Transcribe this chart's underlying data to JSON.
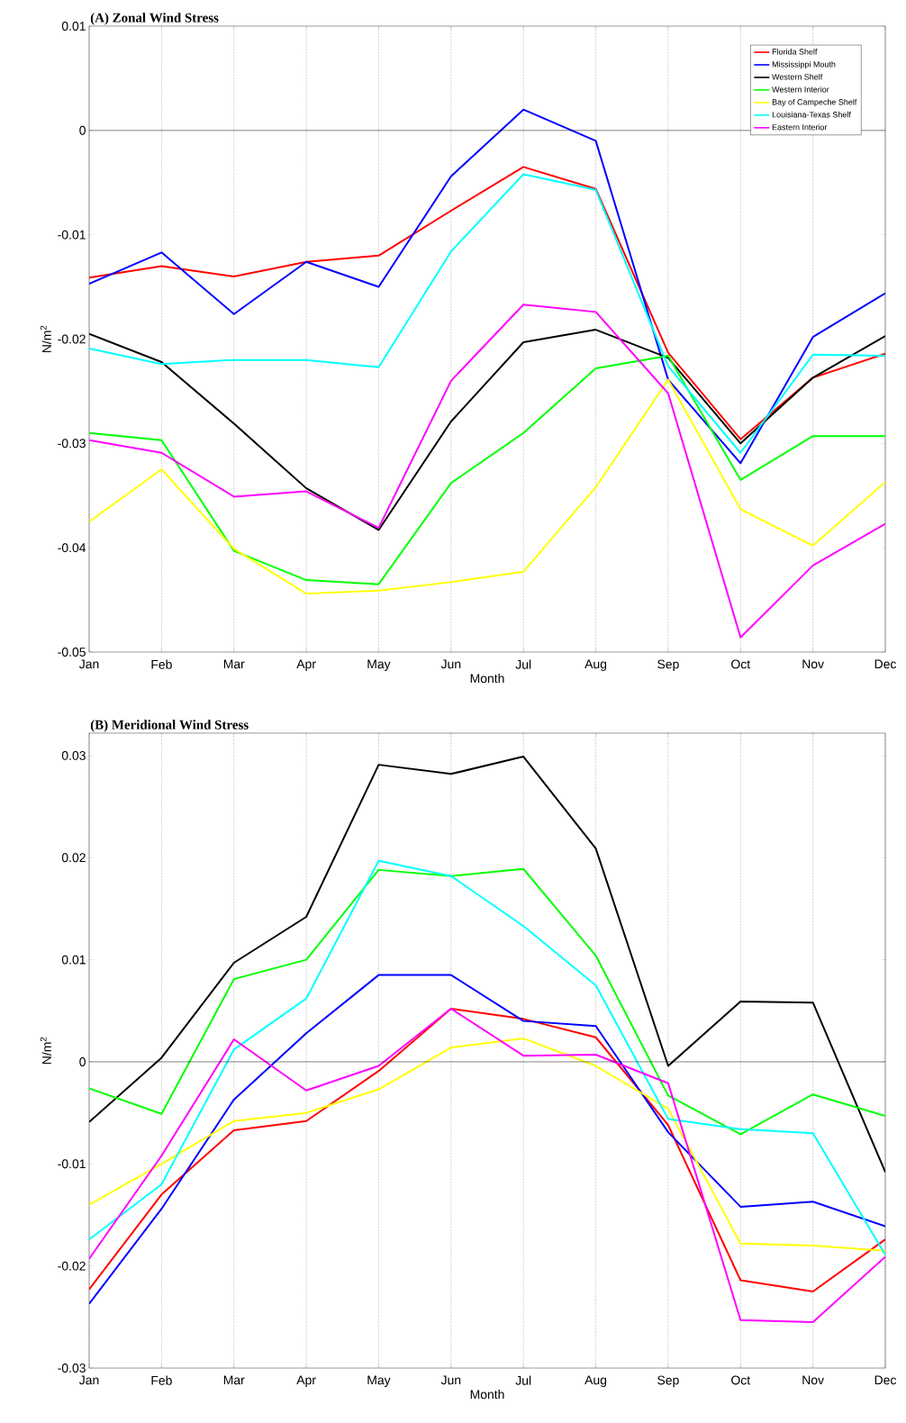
{
  "chart_data": [
    {
      "type": "line",
      "title": "(A) Zonal Wind Stress",
      "xlabel": "Month",
      "ylabel": "N/m$^{2}$",
      "categories": [
        "Jan",
        "Feb",
        "Mar",
        "Apr",
        "May",
        "Jun",
        "Jul",
        "Aug",
        "Sep",
        "Oct",
        "Nov",
        "Dec"
      ],
      "ylim": [
        -0.05,
        0.01
      ],
      "yticks": [
        {
          "value": -0.05,
          "label": "-0.05"
        },
        {
          "value": -0.04,
          "label": "-0.04"
        },
        {
          "value": -0.03,
          "label": "-0.03"
        },
        {
          "value": -0.02,
          "label": "-0.02"
        },
        {
          "value": -0.01,
          "label": "-0.01"
        },
        {
          "value": 0,
          "label": "0"
        },
        {
          "value": 0.01,
          "label": "0.01"
        }
      ],
      "grid": "x",
      "legend": "top right",
      "line_style": "solid",
      "marker": "none",
      "ref_lines": [
        {
          "axis": "y",
          "value": 0,
          "color": "#000000"
        }
      ],
      "series": [
        {
          "name": "Florida Shelf",
          "color": "#ff0000",
          "values": [
            -0.0141,
            -0.013,
            -0.014,
            -0.0126,
            -0.012,
            -0.0077,
            -0.0035,
            -0.0056,
            -0.0213,
            -0.0296,
            -0.0237,
            -0.0214
          ]
        },
        {
          "name": "Mississippi Mouth",
          "color": "#0000ff",
          "values": [
            -0.0147,
            -0.0117,
            -0.0176,
            -0.0126,
            -0.015,
            -0.0044,
            0.002,
            -0.001,
            -0.0239,
            -0.0319,
            -0.0198,
            -0.0156
          ]
        },
        {
          "name": "Western Shelf",
          "color": "#000000",
          "values": [
            -0.0195,
            -0.0222,
            -0.0281,
            -0.0343,
            -0.0383,
            -0.0279,
            -0.0203,
            -0.0191,
            -0.0218,
            -0.03,
            -0.0237,
            -0.0197
          ]
        },
        {
          "name": "Western Interior",
          "color": "#00ff00",
          "values": [
            -0.029,
            -0.0297,
            -0.0403,
            -0.0431,
            -0.0435,
            -0.0338,
            -0.029,
            -0.0228,
            -0.0216,
            -0.0335,
            -0.0293,
            -0.0293
          ]
        },
        {
          "name": "Bay of Campeche Shelf",
          "color": "#ffff00",
          "values": [
            -0.0375,
            -0.0325,
            -0.0401,
            -0.0444,
            -0.0441,
            -0.0433,
            -0.0423,
            -0.0342,
            -0.0239,
            -0.0363,
            -0.0398,
            -0.0337
          ]
        },
        {
          "name": "Louisiana-Texas Shelf",
          "color": "#00ffff",
          "values": [
            -0.0209,
            -0.0224,
            -0.022,
            -0.022,
            -0.0227,
            -0.0116,
            -0.0042,
            -0.0057,
            -0.0226,
            -0.0309,
            -0.0215,
            -0.0216
          ]
        },
        {
          "name": "Eastern Interior",
          "color": "#ff00ff",
          "values": [
            -0.0297,
            -0.0309,
            -0.0351,
            -0.0346,
            -0.0381,
            -0.024,
            -0.0167,
            -0.0174,
            -0.0252,
            -0.0486,
            -0.0417,
            -0.0377
          ]
        }
      ]
    },
    {
      "type": "line",
      "title": "(B) Meridional Wind Stress",
      "xlabel": "Month",
      "ylabel": "N/m$^{2}$",
      "categories": [
        "Jan",
        "Feb",
        "Mar",
        "Apr",
        "May",
        "Jun",
        "Jul",
        "Aug",
        "Sep",
        "Oct",
        "Nov",
        "Dec"
      ],
      "ylim": [
        -0.03,
        0.0322
      ],
      "yticks": [
        {
          "value": -0.03,
          "label": "-0.03"
        },
        {
          "value": -0.02,
          "label": "-0.02"
        },
        {
          "value": -0.01,
          "label": "-0.01"
        },
        {
          "value": 0,
          "label": "0"
        },
        {
          "value": 0.01,
          "label": "0.01"
        },
        {
          "value": 0.02,
          "label": "0.02"
        },
        {
          "value": 0.03,
          "label": "0.03"
        }
      ],
      "grid": "x",
      "line_style": "solid",
      "marker": "none",
      "ref_lines": [
        {
          "axis": "y",
          "value": 0,
          "color": "#000000"
        }
      ],
      "series": [
        {
          "color": "#ff0000",
          "values": [
            -0.0223,
            -0.013,
            -0.0067,
            -0.0058,
            -0.0009,
            0.0052,
            0.0042,
            0.0024,
            -0.0062,
            -0.0214,
            -0.0225,
            -0.0174
          ]
        },
        {
          "color": "#0000ff",
          "values": [
            -0.0237,
            -0.0144,
            -0.0037,
            0.0028,
            0.0085,
            0.0085,
            0.004,
            0.0035,
            -0.0069,
            -0.0142,
            -0.0137,
            -0.0161
          ]
        },
        {
          "color": "#000000",
          "values": [
            -0.0059,
            0.0004,
            0.0097,
            0.0142,
            0.0291,
            0.0282,
            0.0299,
            0.0209,
            -0.0004,
            0.0059,
            0.0058,
            -0.0108
          ]
        },
        {
          "color": "#00ff00",
          "values": [
            -0.0026,
            -0.0051,
            0.0081,
            0.01,
            0.0188,
            0.0182,
            0.0189,
            0.0104,
            -0.0033,
            -0.0071,
            -0.0032,
            -0.0053
          ]
        },
        {
          "color": "#ffff00",
          "values": [
            -0.014,
            -0.01,
            -0.0058,
            -0.005,
            -0.0027,
            0.0014,
            0.0023,
            -0.0004,
            -0.0046,
            -0.0178,
            -0.018,
            -0.0185
          ]
        },
        {
          "color": "#00ffff",
          "values": [
            -0.0174,
            -0.012,
            0.0012,
            0.0062,
            0.0197,
            0.0182,
            0.0133,
            0.0075,
            -0.0056,
            -0.0066,
            -0.007,
            -0.0189
          ]
        },
        {
          "color": "#ff00ff",
          "values": [
            -0.0193,
            -0.0092,
            0.0022,
            -0.0028,
            -0.0004,
            0.0052,
            0.0006,
            0.0007,
            -0.0021,
            -0.0253,
            -0.0255,
            -0.0191
          ]
        }
      ]
    }
  ]
}
